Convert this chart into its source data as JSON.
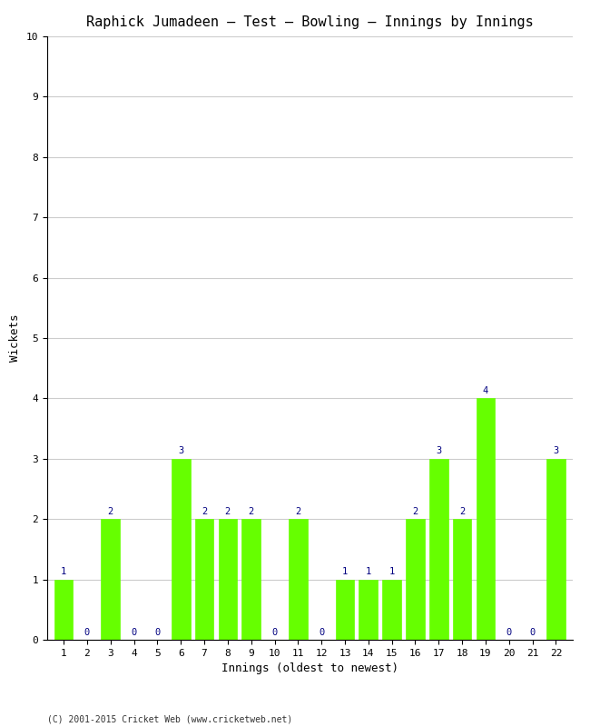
{
  "title": "Raphick Jumadeen – Test – Bowling – Innings by Innings",
  "xlabel": "Innings (oldest to newest)",
  "ylabel": "Wickets",
  "innings": [
    1,
    2,
    3,
    4,
    5,
    6,
    7,
    8,
    9,
    10,
    11,
    12,
    13,
    14,
    15,
    16,
    17,
    18,
    19,
    20,
    21,
    22
  ],
  "wickets": [
    1,
    0,
    2,
    0,
    0,
    3,
    2,
    2,
    2,
    0,
    2,
    0,
    1,
    1,
    1,
    2,
    3,
    2,
    4,
    0,
    0,
    3
  ],
  "bar_color": "#66ff00",
  "label_color": "#000080",
  "ylim": [
    0,
    10
  ],
  "yticks": [
    0,
    1,
    2,
    3,
    4,
    5,
    6,
    7,
    8,
    9,
    10
  ],
  "background_color": "#ffffff",
  "grid_color": "#cccccc",
  "footer": "(C) 2001-2015 Cricket Web (www.cricketweb.net)",
  "title_fontsize": 11,
  "axis_label_fontsize": 9,
  "tick_fontsize": 8,
  "bar_label_fontsize": 7.5,
  "footer_fontsize": 7
}
